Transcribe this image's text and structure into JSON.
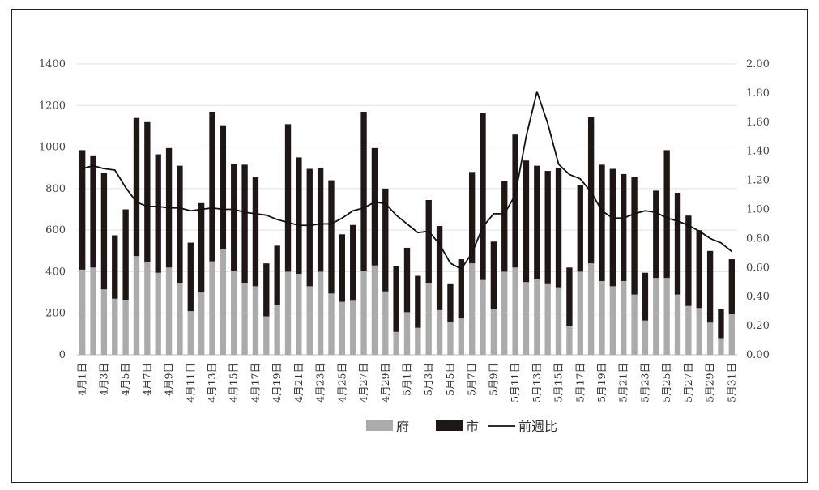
{
  "chart_data": {
    "type": "bar",
    "stacked": true,
    "categories": [
      "4月1日",
      "4月2日",
      "4月3日",
      "4月4日",
      "4月5日",
      "4月6日",
      "4月7日",
      "4月8日",
      "4月9日",
      "4月10日",
      "4月11日",
      "4月12日",
      "4月13日",
      "4月14日",
      "4月15日",
      "4月16日",
      "4月17日",
      "4月18日",
      "4月19日",
      "4月20日",
      "4月21日",
      "4月22日",
      "4月23日",
      "4月24日",
      "4月25日",
      "4月26日",
      "4月27日",
      "4月28日",
      "4月29日",
      "4月30日",
      "5月1日",
      "5月2日",
      "5月3日",
      "5月4日",
      "5月5日",
      "5月6日",
      "5月7日",
      "5月8日",
      "5月9日",
      "5月10日",
      "5月11日",
      "5月12日",
      "5月13日",
      "5月14日",
      "5月15日",
      "5月16日",
      "5月17日",
      "5月18日",
      "5月19日",
      "5月20日",
      "5月21日",
      "5月22日",
      "5月23日",
      "5月24日",
      "5月25日",
      "5月26日",
      "5月27日",
      "5月28日",
      "5月29日",
      "5月30日",
      "5月31日"
    ],
    "x_tick_labels": [
      "4月1日",
      "4月3日",
      "4月5日",
      "4月7日",
      "4月9日",
      "4月11日",
      "4月13日",
      "4月15日",
      "4月17日",
      "4月19日",
      "4月21日",
      "4月23日",
      "4月25日",
      "4月27日",
      "4月29日",
      "5月1日",
      "5月3日",
      "5月5日",
      "5月7日",
      "5月9日",
      "5月11日",
      "5月13日",
      "5月15日",
      "5月17日",
      "5月19日",
      "5月21日",
      "5月23日",
      "5月25日",
      "5月27日",
      "5月29日",
      "5月31日"
    ],
    "series": [
      {
        "name": "府",
        "kind": "bar",
        "color": "#ababab",
        "axis": "left",
        "values": [
          410,
          420,
          315,
          270,
          265,
          475,
          445,
          395,
          420,
          345,
          210,
          300,
          450,
          510,
          405,
          345,
          330,
          185,
          240,
          400,
          390,
          330,
          400,
          295,
          255,
          260,
          405,
          430,
          305,
          110,
          205,
          130,
          345,
          215,
          160,
          175,
          440,
          360,
          220,
          400,
          420,
          350,
          365,
          340,
          325,
          140,
          400,
          440,
          355,
          330,
          355,
          290,
          165,
          370,
          370,
          290,
          235,
          225,
          155,
          80,
          195
        ]
      },
      {
        "name": "市",
        "kind": "bar",
        "color": "#1e1716",
        "axis": "left",
        "values": [
          575,
          540,
          560,
          305,
          435,
          665,
          675,
          570,
          575,
          565,
          330,
          430,
          720,
          595,
          515,
          570,
          525,
          255,
          285,
          710,
          560,
          565,
          500,
          545,
          325,
          365,
          765,
          565,
          495,
          315,
          310,
          250,
          400,
          405,
          180,
          285,
          440,
          805,
          325,
          435,
          640,
          585,
          545,
          545,
          575,
          280,
          415,
          705,
          560,
          565,
          515,
          565,
          230,
          420,
          615,
          490,
          435,
          375,
          345,
          140,
          265
        ]
      },
      {
        "name": "前週比",
        "kind": "line",
        "color": "#111111",
        "axis": "right",
        "values": [
          1.28,
          1.3,
          1.28,
          1.27,
          1.15,
          1.05,
          1.02,
          1.02,
          1.01,
          1.01,
          0.99,
          1.0,
          1.01,
          1.0,
          1.0,
          0.98,
          0.97,
          0.96,
          0.93,
          0.91,
          0.89,
          0.89,
          0.9,
          0.9,
          0.94,
          0.99,
          1.01,
          1.05,
          1.04,
          0.96,
          0.9,
          0.84,
          0.85,
          0.76,
          0.63,
          0.59,
          0.7,
          0.88,
          0.97,
          0.97,
          1.1,
          1.5,
          1.81,
          1.59,
          1.31,
          1.24,
          1.21,
          1.12,
          0.99,
          0.94,
          0.94,
          0.97,
          0.99,
          0.98,
          0.94,
          0.92,
          0.89,
          0.85,
          0.8,
          0.77,
          0.71
        ]
      }
    ],
    "y_left": {
      "min": 0,
      "max": 1400,
      "ticks": [
        "0",
        "200",
        "400",
        "600",
        "800",
        "1000",
        "1200",
        "1400"
      ]
    },
    "y_right": {
      "min": 0,
      "max": 2.0,
      "ticks": [
        "0.00",
        "0.20",
        "0.40",
        "0.60",
        "0.80",
        "1.00",
        "1.20",
        "1.40",
        "1.60",
        "1.80",
        "2.00"
      ]
    },
    "grid": true,
    "legend_position": "bottom-center",
    "legend": [
      "府",
      "市",
      "前週比"
    ]
  }
}
